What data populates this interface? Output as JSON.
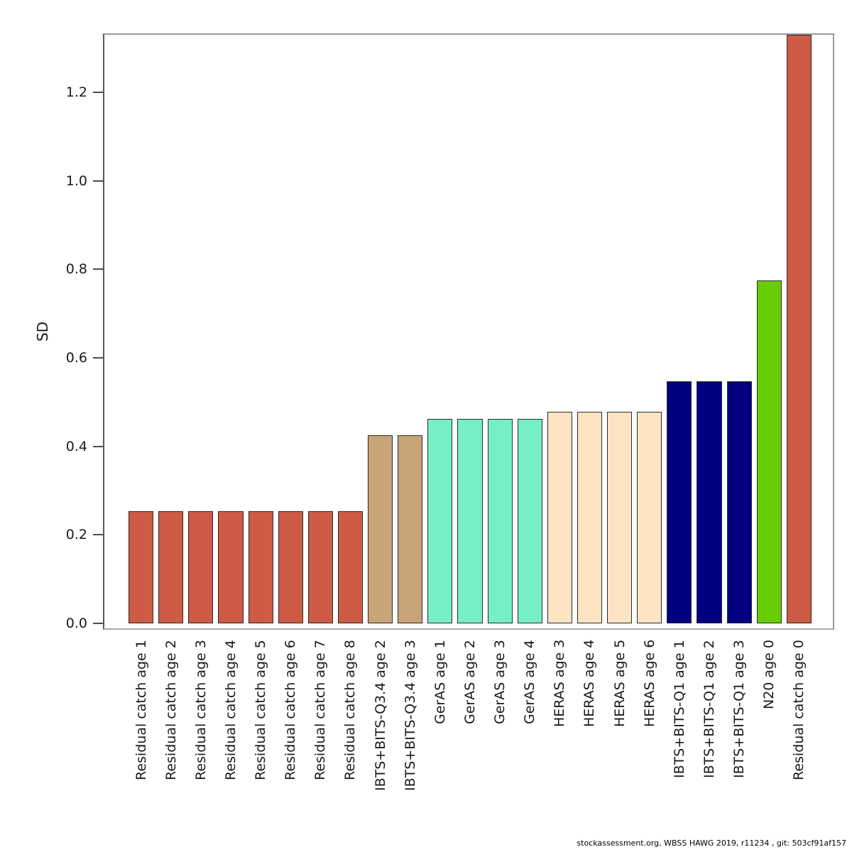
{
  "chart_data": {
    "type": "bar",
    "title": "",
    "xlabel": "",
    "ylabel": "SD",
    "ylim": [
      0,
      1.33
    ],
    "yticks": [
      0.0,
      0.2,
      0.4,
      0.6,
      0.8,
      1.0,
      1.2
    ],
    "grid": false,
    "legend": "none",
    "categories": [
      "Residual catch age 1",
      "Residual catch age 2",
      "Residual catch age 3",
      "Residual catch age 4",
      "Residual catch age 5",
      "Residual catch age 6",
      "Residual catch age 7",
      "Residual catch age 8",
      "IBTS+BITS-Q3.4 age 2",
      "IBTS+BITS-Q3.4 age 3",
      "GerAS age 1",
      "GerAS age 2",
      "GerAS age 3",
      "GerAS age 4",
      "HERAS age 3",
      "HERAS age 4",
      "HERAS age 5",
      "HERAS age 6",
      "IBTS+BITS-Q1 age 1",
      "IBTS+BITS-Q1 age 2",
      "IBTS+BITS-Q1 age 3",
      "N20 age 0",
      "Residual catch age 0"
    ],
    "values": [
      0.253,
      0.253,
      0.253,
      0.253,
      0.253,
      0.253,
      0.253,
      0.253,
      0.425,
      0.425,
      0.462,
      0.462,
      0.462,
      0.462,
      0.478,
      0.478,
      0.478,
      0.478,
      0.547,
      0.547,
      0.547,
      0.775,
      1.33
    ],
    "bar_colors": [
      "#CD5B45",
      "#CD5B45",
      "#CD5B45",
      "#CD5B45",
      "#CD5B45",
      "#CD5B45",
      "#CD5B45",
      "#CD5B45",
      "#C8A478",
      "#C8A478",
      "#76EEC6",
      "#76EEC6",
      "#76EEC6",
      "#76EEC6",
      "#FFE4C4",
      "#FFE4C4",
      "#FFE4C4",
      "#FFE4C4",
      "#000080",
      "#000080",
      "#000080",
      "#66CD00",
      "#CD5B45"
    ]
  },
  "footer": {
    "text": "stockassessment.org, WBSS  HAWG  2019, r11234 , git: 503cf91af157"
  }
}
